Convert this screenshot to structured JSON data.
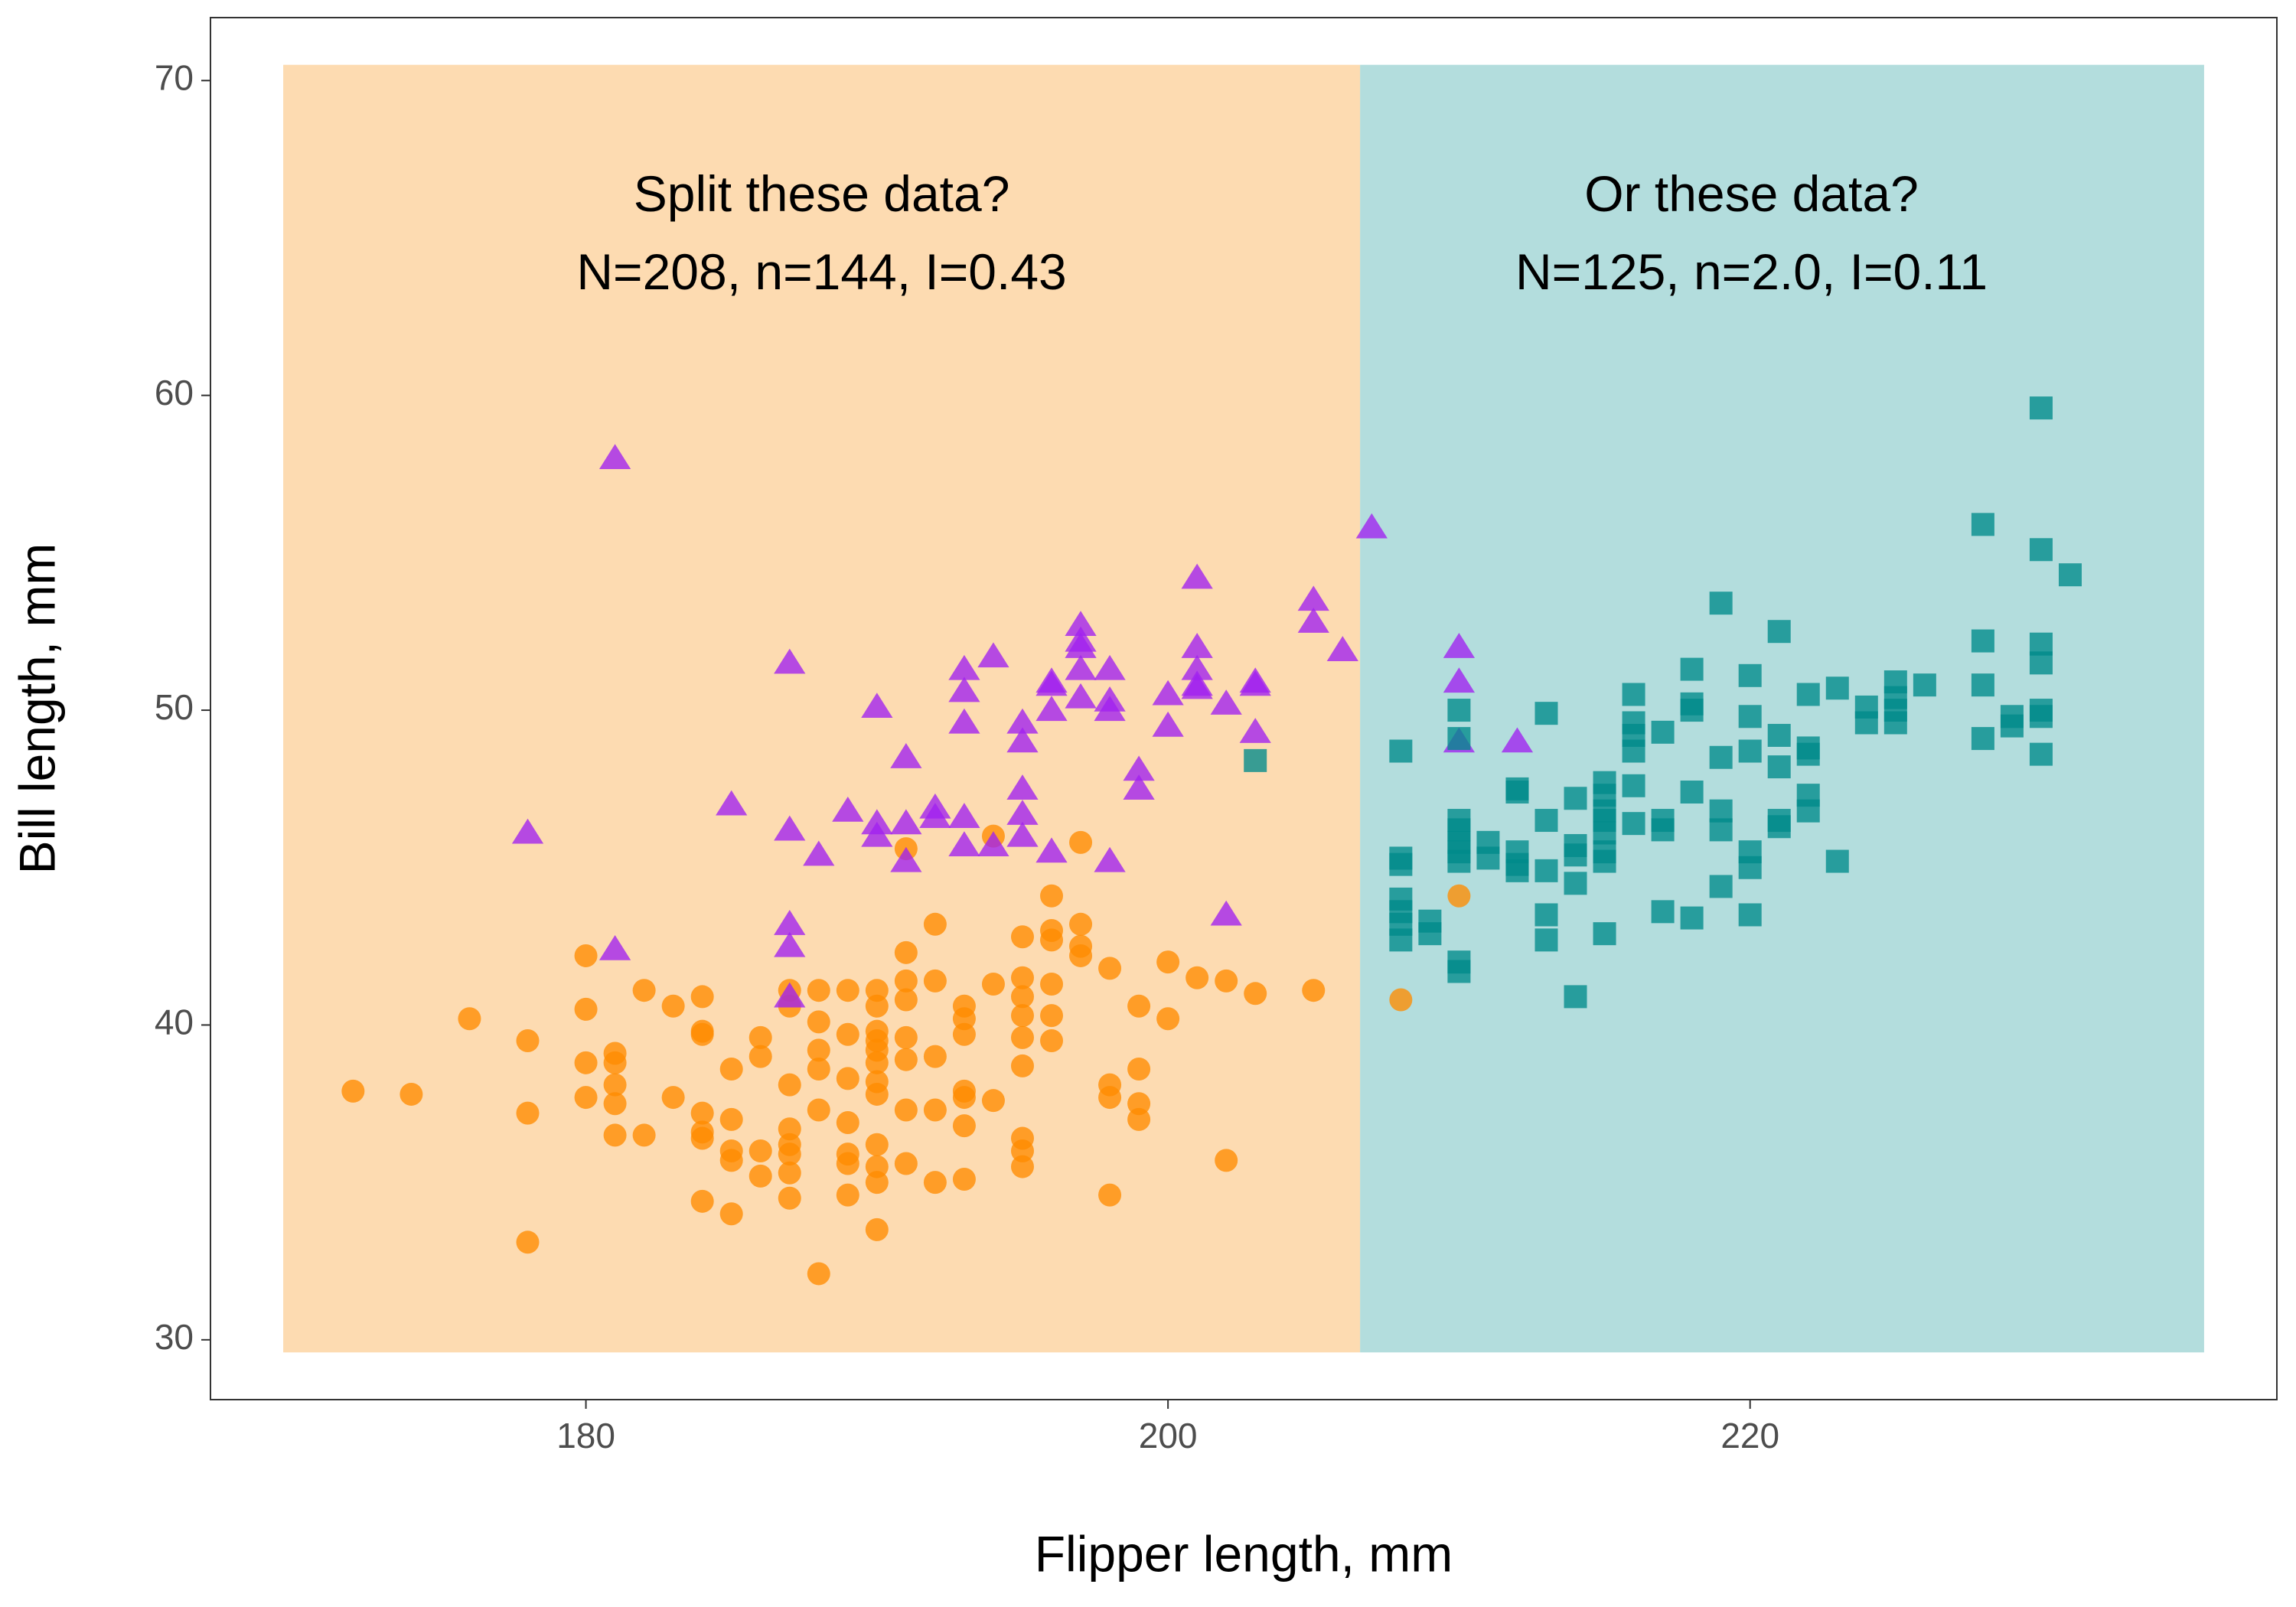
{
  "chart_data": {
    "type": "scatter",
    "xlabel": "Flipper length, mm",
    "ylabel": "Bill length, mm",
    "xlim": [
      167.1,
      238.1
    ],
    "ylim": [
      28.1,
      72.0
    ],
    "xticks": [
      180,
      200,
      220
    ],
    "yticks": [
      30,
      40,
      50,
      60,
      70
    ],
    "regions": [
      {
        "x": [
          169.6,
          206.6
        ],
        "y": [
          29.6,
          70.5
        ],
        "color": "#fddbb1",
        "text": [
          "Split these data?",
          "N=208, n=144, I=0.43"
        ]
      },
      {
        "x": [
          206.6,
          235.6
        ],
        "y": [
          29.6,
          70.5
        ],
        "color": "#b3dddd",
        "text": [
          "Or these data?",
          "N=125, n=2.0, I=0.11"
        ]
      }
    ],
    "series": [
      {
        "marker": "circle",
        "color": "#ff8c00",
        "x": [
          172,
          174,
          176,
          178,
          178,
          178,
          180,
          180,
          180,
          180,
          181,
          181,
          181,
          181,
          181,
          182,
          182,
          183,
          183,
          184,
          184,
          184,
          184,
          184,
          184,
          184,
          185,
          185,
          185,
          185,
          185,
          186,
          186,
          186,
          186,
          187,
          187,
          187,
          187,
          187,
          187,
          187,
          187,
          188,
          188,
          188,
          188,
          188,
          188,
          189,
          189,
          189,
          189,
          189,
          189,
          189,
          190,
          190,
          190,
          190,
          190,
          190,
          190,
          190,
          190,
          190,
          190,
          190,
          191,
          191,
          191,
          191,
          191,
          191,
          191,
          191,
          192,
          192,
          192,
          192,
          192,
          193,
          193,
          193,
          193,
          193,
          193,
          193,
          194,
          194,
          194,
          195,
          195,
          195,
          195,
          195,
          195,
          195,
          195,
          195,
          196,
          196,
          196,
          196,
          196,
          196,
          197,
          197,
          197,
          197,
          198,
          198,
          198,
          198,
          199,
          199,
          199,
          199,
          200,
          200,
          201,
          202,
          202,
          203,
          205,
          208,
          210
        ],
        "y": [
          37.9,
          37.8,
          40.2,
          39.5,
          37.2,
          33.1,
          42.2,
          40.5,
          38.8,
          37.7,
          39.1,
          38.8,
          38.1,
          37.5,
          36.5,
          41.1,
          36.5,
          40.6,
          37.7,
          40.9,
          39.8,
          39.7,
          37.2,
          36.6,
          36.4,
          34.4,
          38.6,
          37.0,
          36.0,
          35.7,
          34.0,
          39.6,
          39.0,
          36.0,
          35.2,
          41.1,
          40.6,
          38.1,
          36.7,
          36.2,
          35.9,
          35.3,
          34.5,
          41.1,
          40.1,
          39.2,
          38.6,
          37.3,
          32.1,
          41.1,
          39.7,
          38.3,
          36.9,
          35.9,
          35.6,
          34.6,
          41.1,
          40.6,
          39.8,
          39.5,
          39.2,
          38.8,
          38.2,
          37.8,
          36.2,
          35.5,
          35.0,
          33.5,
          45.6,
          42.3,
          41.4,
          40.8,
          39.6,
          38.9,
          37.3,
          35.6,
          43.2,
          41.4,
          39.0,
          37.3,
          35.0,
          40.6,
          40.2,
          39.7,
          37.9,
          37.7,
          36.8,
          35.1,
          46.0,
          41.3,
          37.6,
          42.8,
          41.5,
          40.9,
          40.3,
          39.6,
          38.7,
          36.4,
          36.0,
          35.5,
          44.1,
          43.0,
          42.7,
          41.3,
          40.3,
          39.5,
          45.8,
          43.2,
          42.5,
          42.2,
          41.8,
          38.1,
          37.7,
          34.6,
          40.6,
          38.6,
          37.5,
          37.0,
          42.0,
          40.2,
          41.5,
          41.4,
          35.7,
          41.0,
          41.1,
          40.8,
          44.1
        ]
      },
      {
        "marker": "triangle",
        "color": "#a020f0",
        "x": [
          178,
          181,
          181,
          185,
          187,
          187,
          187,
          187,
          187,
          188,
          189,
          190,
          190,
          190,
          191,
          191,
          191,
          192,
          192,
          193,
          193,
          193,
          193,
          193,
          194,
          194,
          195,
          195,
          195,
          195,
          195,
          196,
          196,
          196,
          196,
          197,
          197,
          197,
          197,
          197,
          198,
          198,
          198,
          198,
          199,
          199,
          200,
          200,
          201,
          201,
          201,
          201,
          201,
          202,
          202,
          203,
          203,
          203,
          205,
          205,
          206,
          207,
          210,
          210,
          210,
          212
        ],
        "y": [
          46.1,
          58.0,
          42.4,
          47.0,
          51.5,
          46.2,
          43.2,
          42.5,
          40.9,
          45.4,
          46.8,
          50.1,
          46.4,
          46.0,
          48.5,
          46.4,
          45.2,
          46.9,
          46.6,
          51.3,
          50.6,
          49.6,
          46.6,
          45.7,
          51.7,
          45.7,
          49.6,
          49.0,
          47.5,
          46.7,
          46.0,
          50.9,
          50.8,
          50.0,
          45.5,
          52.7,
          52.2,
          52.0,
          51.3,
          50.4,
          51.3,
          50.3,
          50.0,
          45.2,
          48.1,
          47.5,
          50.5,
          49.5,
          54.2,
          52.0,
          51.3,
          50.8,
          50.7,
          50.2,
          43.5,
          50.9,
          50.8,
          49.3,
          53.5,
          52.8,
          51.9,
          55.8,
          52.0,
          50.9,
          49.0,
          49.0
        ]
      },
      {
        "marker": "square",
        "color": "#008b8b",
        "x": [
          203,
          208,
          208,
          208,
          208,
          208,
          208,
          208,
          209,
          209,
          210,
          210,
          210,
          210,
          210,
          210,
          210,
          210,
          210,
          211,
          211,
          212,
          212,
          212,
          212,
          212,
          213,
          213,
          213,
          213,
          213,
          214,
          214,
          214,
          214,
          214,
          215,
          215,
          215,
          215,
          215,
          215,
          215,
          215,
          216,
          216,
          216,
          216,
          216,
          216,
          217,
          217,
          217,
          217,
          218,
          218,
          218,
          218,
          218,
          219,
          219,
          219,
          219,
          219,
          220,
          220,
          220,
          220,
          220,
          220,
          221,
          221,
          221,
          221,
          221,
          222,
          222,
          222,
          222,
          222,
          223,
          223,
          224,
          224,
          225,
          225,
          225,
          225,
          226,
          228,
          228,
          228,
          228,
          229,
          229,
          230,
          230,
          230,
          230,
          230,
          230,
          230,
          231
        ],
        "y": [
          48.4,
          45.1,
          48.7,
          45.3,
          44.0,
          43.6,
          43.2,
          42.7,
          43.3,
          42.9,
          50.0,
          49.1,
          46.5,
          46.2,
          45.8,
          45.5,
          45.2,
          42.0,
          41.7,
          45.8,
          45.3,
          47.5,
          47.4,
          45.5,
          45.1,
          44.9,
          49.9,
          46.5,
          44.9,
          43.5,
          42.7,
          47.2,
          45.7,
          45.4,
          44.5,
          40.9,
          47.7,
          47.3,
          46.8,
          46.5,
          46.1,
          45.5,
          45.2,
          42.9,
          50.5,
          49.6,
          49.2,
          48.7,
          47.6,
          46.4,
          49.3,
          46.5,
          46.2,
          43.6,
          51.3,
          50.2,
          50.0,
          47.4,
          43.4,
          53.4,
          48.5,
          46.8,
          46.2,
          44.4,
          51.1,
          49.8,
          48.7,
          45.5,
          45.0,
          43.5,
          52.5,
          49.2,
          48.2,
          46.5,
          46.3,
          50.5,
          48.8,
          48.6,
          47.3,
          46.8,
          50.7,
          45.2,
          50.1,
          49.6,
          50.9,
          50.4,
          50.0,
          49.6,
          50.8,
          55.9,
          52.2,
          50.8,
          49.1,
          49.8,
          49.5,
          59.6,
          55.1,
          52.1,
          51.5,
          50.0,
          49.8,
          48.6,
          54.3
        ]
      }
    ]
  }
}
